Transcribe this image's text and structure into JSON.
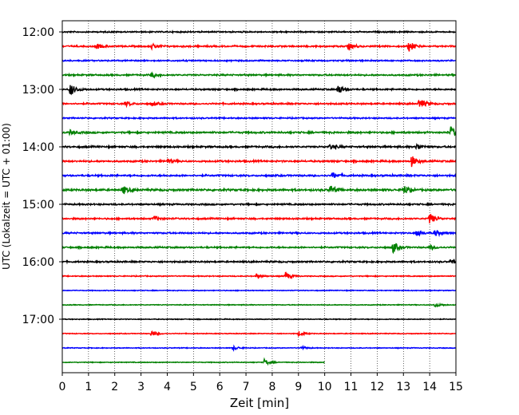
{
  "chart_data": {
    "type": "line",
    "title": "",
    "xlabel": "Zeit  [min]",
    "ylabel": "UTC (Lokalzeit = UTC + 01:00)",
    "xlim": [
      0,
      15
    ],
    "x_ticks": [
      "0",
      "1",
      "2",
      "3",
      "4",
      "5",
      "6",
      "7",
      "8",
      "9",
      "10",
      "11",
      "12",
      "13",
      "14",
      "15"
    ],
    "y_ticks": [
      "12:00",
      "13:00",
      "14:00",
      "15:00",
      "16:00",
      "17:00"
    ],
    "x_grid": "vertical dotted",
    "row_colors": [
      "#000000",
      "#ff0000",
      "#0000ff",
      "#008000"
    ],
    "series": [
      {
        "start": "12:00",
        "x_end": 15,
        "color": "#000000",
        "noise": 0.7,
        "events": []
      },
      {
        "start": "12:15",
        "x_end": 15,
        "color": "#ff0000",
        "noise": 0.8,
        "events": [
          {
            "x": 1.3,
            "amp": 3
          },
          {
            "x": 3.4,
            "amp": 3
          },
          {
            "x": 10.9,
            "amp": 4
          },
          {
            "x": 13.2,
            "amp": 7
          }
        ]
      },
      {
        "start": "12:30",
        "x_end": 15,
        "color": "#0000ff",
        "noise": 0.7,
        "events": []
      },
      {
        "start": "12:45",
        "x_end": 15,
        "color": "#008000",
        "noise": 0.8,
        "events": [
          {
            "x": 3.4,
            "amp": 3
          }
        ]
      },
      {
        "start": "13:00",
        "x_end": 15,
        "color": "#000000",
        "noise": 0.8,
        "events": [
          {
            "x": 0.3,
            "amp": 8
          },
          {
            "x": 10.5,
            "amp": 6
          }
        ]
      },
      {
        "start": "13:15",
        "x_end": 15,
        "color": "#ff0000",
        "noise": 0.8,
        "events": [
          {
            "x": 2.4,
            "amp": 3
          },
          {
            "x": 3.4,
            "amp": 3
          },
          {
            "x": 13.6,
            "amp": 7
          }
        ]
      },
      {
        "start": "13:30",
        "x_end": 15,
        "color": "#0000ff",
        "noise": 0.7,
        "events": []
      },
      {
        "start": "13:45",
        "x_end": 15,
        "color": "#008000",
        "noise": 0.9,
        "events": [
          {
            "x": 0.3,
            "amp": 3
          },
          {
            "x": 14.8,
            "amp": 7
          }
        ]
      },
      {
        "start": "14:00",
        "x_end": 15,
        "color": "#000000",
        "noise": 0.9,
        "events": [
          {
            "x": 10.2,
            "amp": 4
          },
          {
            "x": 13.5,
            "amp": 4
          }
        ]
      },
      {
        "start": "14:15",
        "x_end": 15,
        "color": "#ff0000",
        "noise": 0.9,
        "events": [
          {
            "x": 4.0,
            "amp": 3
          },
          {
            "x": 13.3,
            "amp": 7
          }
        ]
      },
      {
        "start": "14:30",
        "x_end": 15,
        "color": "#0000ff",
        "noise": 0.9,
        "events": [
          {
            "x": 10.3,
            "amp": 4
          }
        ]
      },
      {
        "start": "14:45",
        "x_end": 15,
        "color": "#008000",
        "noise": 1.0,
        "events": [
          {
            "x": 2.3,
            "amp": 5
          },
          {
            "x": 10.2,
            "amp": 6
          },
          {
            "x": 13.0,
            "amp": 6
          }
        ]
      },
      {
        "start": "15:00",
        "x_end": 15,
        "color": "#000000",
        "noise": 0.8,
        "events": []
      },
      {
        "start": "15:15",
        "x_end": 15,
        "color": "#ff0000",
        "noise": 0.8,
        "events": [
          {
            "x": 3.5,
            "amp": 3
          },
          {
            "x": 14.0,
            "amp": 7
          }
        ]
      },
      {
        "start": "15:30",
        "x_end": 15,
        "color": "#0000ff",
        "noise": 0.8,
        "events": [
          {
            "x": 13.5,
            "amp": 5
          },
          {
            "x": 14.2,
            "amp": 4
          }
        ]
      },
      {
        "start": "15:45",
        "x_end": 15,
        "color": "#008000",
        "noise": 0.8,
        "events": [
          {
            "x": 12.6,
            "amp": 7
          },
          {
            "x": 14.0,
            "amp": 3
          }
        ]
      },
      {
        "start": "16:00",
        "x_end": 15,
        "color": "#000000",
        "noise": 0.8,
        "events": [
          {
            "x": 14.8,
            "amp": 3
          }
        ]
      },
      {
        "start": "16:15",
        "x_end": 15,
        "color": "#ff0000",
        "noise": 0.5,
        "events": [
          {
            "x": 8.5,
            "amp": 5
          },
          {
            "x": 7.4,
            "amp": 3
          }
        ]
      },
      {
        "start": "16:30",
        "x_end": 15,
        "color": "#0000ff",
        "noise": 0.4,
        "events": []
      },
      {
        "start": "16:45",
        "x_end": 15,
        "color": "#008000",
        "noise": 0.4,
        "events": [
          {
            "x": 14.2,
            "amp": 3
          }
        ]
      },
      {
        "start": "17:00",
        "x_end": 15,
        "color": "#000000",
        "noise": 0.4,
        "events": []
      },
      {
        "start": "17:15",
        "x_end": 15,
        "color": "#ff0000",
        "noise": 0.4,
        "events": [
          {
            "x": 3.4,
            "amp": 4
          },
          {
            "x": 9.0,
            "amp": 3
          }
        ]
      },
      {
        "start": "17:30",
        "x_end": 15,
        "color": "#0000ff",
        "noise": 0.4,
        "events": [
          {
            "x": 6.5,
            "amp": 3
          },
          {
            "x": 9.1,
            "amp": 2
          }
        ]
      },
      {
        "start": "17:45",
        "x_end": 10,
        "color": "#008000",
        "noise": 0.4,
        "events": [
          {
            "x": 7.7,
            "amp": 4
          }
        ]
      }
    ]
  }
}
